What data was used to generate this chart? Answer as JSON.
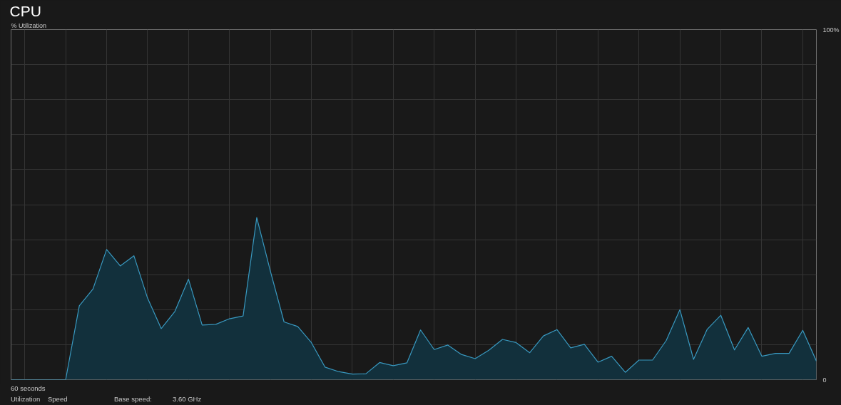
{
  "chart_data": {
    "type": "area",
    "title": "CPU",
    "ylabel": "% Utilization",
    "categories": [
      null,
      null,
      null,
      null,
      null,
      null,
      null,
      null,
      null,
      null,
      null,
      null,
      null,
      null,
      null,
      null,
      null,
      null,
      null,
      null,
      null,
      null,
      null,
      null,
      null,
      null,
      null,
      null,
      null,
      null,
      null,
      null,
      null,
      null,
      null,
      null,
      null,
      null,
      null,
      null,
      null,
      null,
      null,
      null,
      null,
      null,
      null,
      null,
      null,
      null,
      null,
      null,
      null,
      null,
      null,
      null,
      null,
      null,
      null,
      null
    ],
    "series": [
      {
        "color": "#12303c",
        "values": [
          0,
          0,
          0,
          0,
          0,
          21.1,
          25.9,
          37.2,
          32.5,
          35.4,
          23.3,
          14.6,
          19.5,
          28.7,
          15.6,
          15.8,
          17.4,
          18.2,
          46.3,
          31,
          16.5,
          15.2,
          10.6,
          3.6,
          2.3,
          1.6,
          1.7,
          4.9,
          4.0,
          4.8,
          14.2,
          8.6,
          9.9,
          7.2,
          6.0,
          8.4,
          11.5,
          10.6,
          7.7,
          12.5,
          14.3,
          9.1,
          10.1,
          5.0,
          6.7,
          2.1,
          5.6,
          5.6,
          11.2,
          20.0,
          5.8,
          14.4,
          18.4,
          8.5,
          14.9,
          6.7,
          7.5,
          7.5,
          14.1,
          5.3
        ]
      }
    ],
    "ylim": [
      0,
      100
    ],
    "yticks": [
      {
        "value": 0,
        "label": "0"
      },
      {
        "value": 10,
        "label": null
      },
      {
        "value": 20,
        "label": null
      },
      {
        "value": 30,
        "label": null
      },
      {
        "value": 40,
        "label": null
      },
      {
        "value": 50,
        "label": null
      },
      {
        "value": 60,
        "label": null
      },
      {
        "value": 70,
        "label": null
      },
      {
        "value": 80,
        "label": null
      },
      {
        "value": 90,
        "label": null
      },
      {
        "value": 100,
        "label": "100%"
      }
    ],
    "grid": true,
    "annotations": [
      "60 seconds",
      "Utilization",
      "Speed",
      "Base speed:",
      "3.60 GHz"
    ]
  }
}
